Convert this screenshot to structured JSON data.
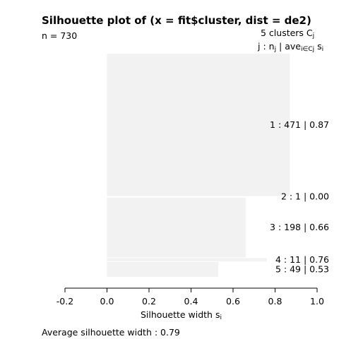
{
  "chart_data": {
    "type": "bar",
    "title": "Silhouette plot of (x = fit$cluster, dist = de2)",
    "n_label": "n = 730",
    "header": {
      "line1": "5  clusters  C",
      "line1_sub": "j",
      "line2_pre": "j :  n",
      "line2_sub1": "j",
      "line2_mid": " | ave",
      "line2_sub2": "i∈Cj",
      "line2_post": "  s",
      "line2_sub3": "i"
    },
    "xlabel": "Silhouette width s",
    "xlabel_sub": "i",
    "xlim": [
      -0.2,
      1.0
    ],
    "xticks": [
      -0.2,
      0.0,
      0.2,
      0.4,
      0.6,
      0.8,
      1.0
    ],
    "xtick_labels": [
      "-0.2",
      "0.0",
      "0.2",
      "0.4",
      "0.6",
      "0.8",
      "1.0"
    ],
    "avg_label": "Average silhouette width :  0.79",
    "average_silhouette_width": 0.79,
    "bar_color": "#f2f2f2",
    "clusters": [
      {
        "j": 1,
        "size": 471,
        "avg": 0.87,
        "label": "1 :   471  |  0.87"
      },
      {
        "j": 2,
        "size": 1,
        "avg": 0.0,
        "label": "2 :   1  |  0.00"
      },
      {
        "j": 3,
        "size": 198,
        "avg": 0.66,
        "label": "3 :   198  |  0.66"
      },
      {
        "j": 4,
        "size": 11,
        "avg": 0.76,
        "label": "4 :   11  |  0.76"
      },
      {
        "j": 5,
        "size": 49,
        "avg": 0.53,
        "label": "5 :   49  |  0.53"
      }
    ]
  }
}
